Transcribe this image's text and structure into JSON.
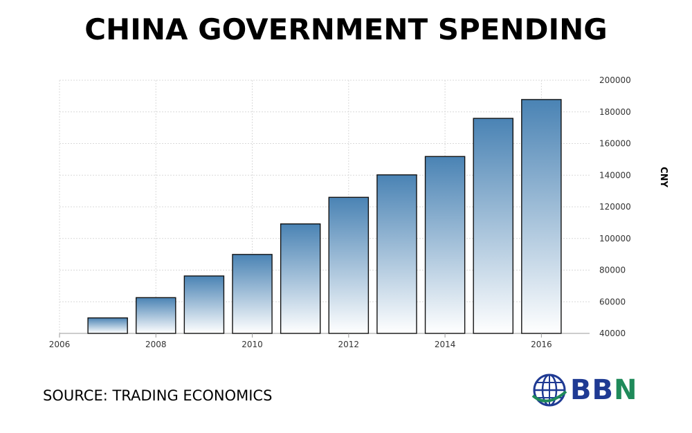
{
  "colors": {
    "bar_top": "#4a83b4",
    "bar_bottom": "#ffffff",
    "grid": "#d9d9d9",
    "logo_blue": "#1f3a93",
    "logo_green": "#1f8a5a"
  },
  "footer": {
    "source": "SOURCE: TRADING ECONOMICS"
  },
  "logo": {
    "text_blue": "BB",
    "text_green": "N",
    "icon": "globe-icon"
  },
  "chart_data": {
    "type": "bar",
    "title": "CHINA GOVERNMENT SPENDING",
    "ylabel": "CNY",
    "xlabel": "",
    "categories": [
      2007,
      2008,
      2009,
      2010,
      2011,
      2012,
      2013,
      2014,
      2015,
      2016
    ],
    "values": [
      49800,
      62600,
      76300,
      89900,
      109200,
      126000,
      140200,
      151800,
      175900,
      187800
    ],
    "xlim": [
      2006,
      2017
    ],
    "ylim": [
      40000,
      200000
    ],
    "xticks": [
      2006,
      2008,
      2010,
      2012,
      2014,
      2016
    ],
    "yticks": [
      40000,
      60000,
      80000,
      100000,
      120000,
      140000,
      160000,
      180000,
      200000
    ],
    "grid": true,
    "y_axis_position": "right"
  }
}
